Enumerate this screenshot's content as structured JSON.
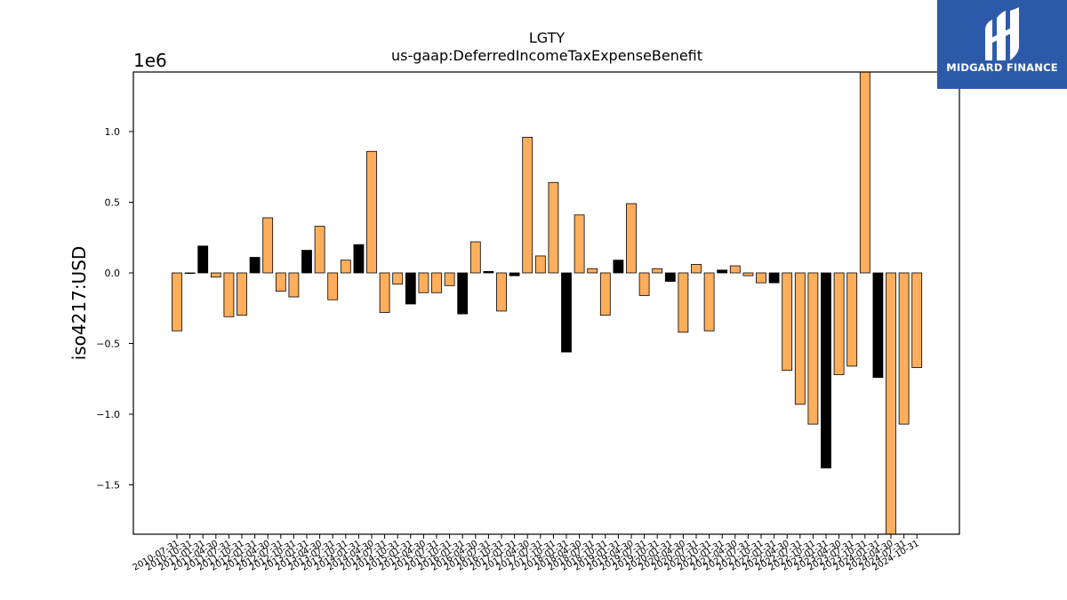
{
  "brand": {
    "name": "MIDGARD FINANCE",
    "color": "#2d5aa8",
    "icon": "midgard-logo-icon"
  },
  "chart_data": {
    "type": "bar",
    "title": "LGTY",
    "subtitle": "us-gaap:DeferredIncomeTaxExpenseBenefit",
    "ylabel": "iso4217:USD",
    "xlabel": "",
    "y_scale_label": "1e6",
    "ylim": [
      -1.85,
      1.42
    ],
    "yticks": [
      -1.5,
      -1.0,
      -0.5,
      0.0,
      0.5,
      1.0
    ],
    "ytick_labels": [
      "−1.5",
      "−1.0",
      "−0.5",
      "0.0",
      "0.5",
      "1.0"
    ],
    "grid": false,
    "legend": "none",
    "colors": {
      "orange": "#ffae5c",
      "black": "#000000"
    },
    "categories": [
      "2010-07-31",
      "2010-10-31",
      "2011-01-31",
      "2011-04-30",
      "2011-07-31",
      "2011-10-31",
      "2012-01-31",
      "2012-04-30",
      "2012-07-31",
      "2012-10-31",
      "2013-01-31",
      "2013-04-30",
      "2013-07-31",
      "2013-10-31",
      "2014-01-31",
      "2014-04-30",
      "2014-07-31",
      "2014-10-31",
      "2015-01-31",
      "2015-04-30",
      "2015-07-31",
      "2015-10-31",
      "2016-01-31",
      "2016-04-30",
      "2016-07-31",
      "2016-10-31",
      "2017-01-31",
      "2017-04-30",
      "2017-07-31",
      "2017-10-31",
      "2018-01-31",
      "2018-04-30",
      "2018-07-31",
      "2018-10-31",
      "2019-01-31",
      "2019-04-30",
      "2019-07-31",
      "2019-10-31",
      "2020-01-31",
      "2020-04-30",
      "2020-07-31",
      "2020-10-31",
      "2021-01-31",
      "2021-04-30",
      "2021-07-31",
      "2021-10-31",
      "2022-01-31",
      "2022-04-30",
      "2022-07-31",
      "2022-10-31",
      "2023-01-31",
      "2023-04-30",
      "2023-07-31",
      "2023-10-31",
      "2024-01-31",
      "2024-04-30",
      "2024-07-31",
      "2024-10-31"
    ],
    "values": [
      -0.41,
      0.0,
      0.19,
      -0.03,
      -0.31,
      -0.3,
      0.11,
      0.39,
      -0.13,
      -0.17,
      0.16,
      0.33,
      -0.19,
      0.09,
      0.2,
      0.86,
      -0.28,
      -0.08,
      -0.22,
      -0.14,
      -0.14,
      -0.09,
      -0.29,
      0.22,
      0.01,
      -0.27,
      -0.02,
      0.96,
      0.12,
      0.64,
      -0.56,
      0.41,
      0.03,
      -0.3,
      0.09,
      0.49,
      -0.16,
      0.03,
      -0.06,
      -0.42,
      0.06,
      -0.41,
      0.02,
      0.05,
      -0.02,
      -0.07,
      -0.07,
      -0.69,
      -0.93,
      -1.07,
      -1.38,
      -0.72,
      -0.66,
      1.45,
      -0.74,
      -1.85,
      -1.07,
      -0.67
    ],
    "bar_colors": [
      "orange",
      "orange",
      "black",
      "orange",
      "orange",
      "orange",
      "black",
      "orange",
      "orange",
      "orange",
      "black",
      "orange",
      "orange",
      "orange",
      "black",
      "orange",
      "orange",
      "orange",
      "black",
      "orange",
      "orange",
      "orange",
      "black",
      "orange",
      "black",
      "orange",
      "black",
      "orange",
      "orange",
      "orange",
      "black",
      "orange",
      "orange",
      "orange",
      "black",
      "orange",
      "orange",
      "orange",
      "black",
      "orange",
      "orange",
      "orange",
      "black",
      "orange",
      "orange",
      "orange",
      "black",
      "orange",
      "orange",
      "orange",
      "black",
      "orange",
      "orange",
      "orange",
      "black",
      "orange",
      "orange",
      "orange"
    ]
  }
}
